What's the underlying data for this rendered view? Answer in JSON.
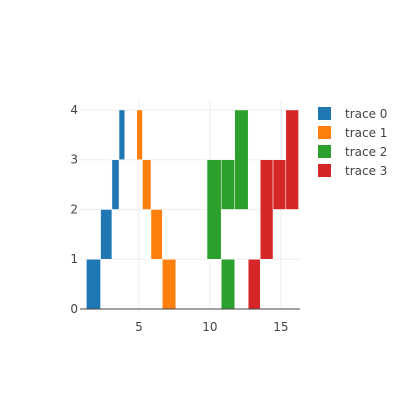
{
  "chart_data": {
    "type": "bar",
    "orientation": "stepped-bars",
    "xlim": [
      0.85,
      16.35
    ],
    "ylim": [
      0,
      4.2
    ],
    "x_ticks": [
      5,
      10,
      15
    ],
    "x_tick_labels": [
      "5",
      "10",
      "15"
    ],
    "y_ticks": [
      0,
      1,
      2,
      3,
      4
    ],
    "y_tick_labels": [
      "0",
      "1",
      "2",
      "3",
      "4"
    ],
    "grid": true,
    "legend_position": "top-right",
    "series": [
      {
        "name": "trace 0",
        "color": "#1f77b4",
        "bars": [
          {
            "x0": 1.3,
            "x1": 2.3,
            "base": 0,
            "top": 1
          },
          {
            "x0": 2.3,
            "x1": 3.1,
            "base": 1,
            "top": 2
          },
          {
            "x0": 3.1,
            "x1": 3.6,
            "base": 2,
            "top": 3
          },
          {
            "x0": 3.6,
            "x1": 4.0,
            "base": 3,
            "top": 4
          }
        ]
      },
      {
        "name": "trace 1",
        "color": "#ff7f0e",
        "bars": [
          {
            "x0": 4.85,
            "x1": 5.25,
            "base": 3,
            "top": 4
          },
          {
            "x0": 5.25,
            "x1": 5.85,
            "base": 2,
            "top": 3
          },
          {
            "x0": 5.85,
            "x1": 6.65,
            "base": 1,
            "top": 2
          },
          {
            "x0": 6.65,
            "x1": 7.6,
            "base": 0,
            "top": 1
          }
        ]
      },
      {
        "name": "trace 2",
        "color": "#2ca02c",
        "bars": [
          {
            "x0": 9.8,
            "x1": 10.8,
            "base": 1,
            "top": 3
          },
          {
            "x0": 10.8,
            "x1": 11.75,
            "base": 0,
            "top": 1
          },
          {
            "x0": 10.8,
            "x1": 11.75,
            "base": 2,
            "top": 3
          },
          {
            "x0": 11.75,
            "x1": 12.7,
            "base": 2,
            "top": 4
          }
        ]
      },
      {
        "name": "trace 3",
        "color": "#d62728",
        "bars": [
          {
            "x0": 12.7,
            "x1": 13.55,
            "base": 0,
            "top": 1
          },
          {
            "x0": 13.55,
            "x1": 14.45,
            "base": 1,
            "top": 3
          },
          {
            "x0": 14.45,
            "x1": 15.35,
            "base": 2,
            "top": 3
          },
          {
            "x0": 15.35,
            "x1": 16.25,
            "base": 2,
            "top": 4
          }
        ]
      }
    ]
  }
}
